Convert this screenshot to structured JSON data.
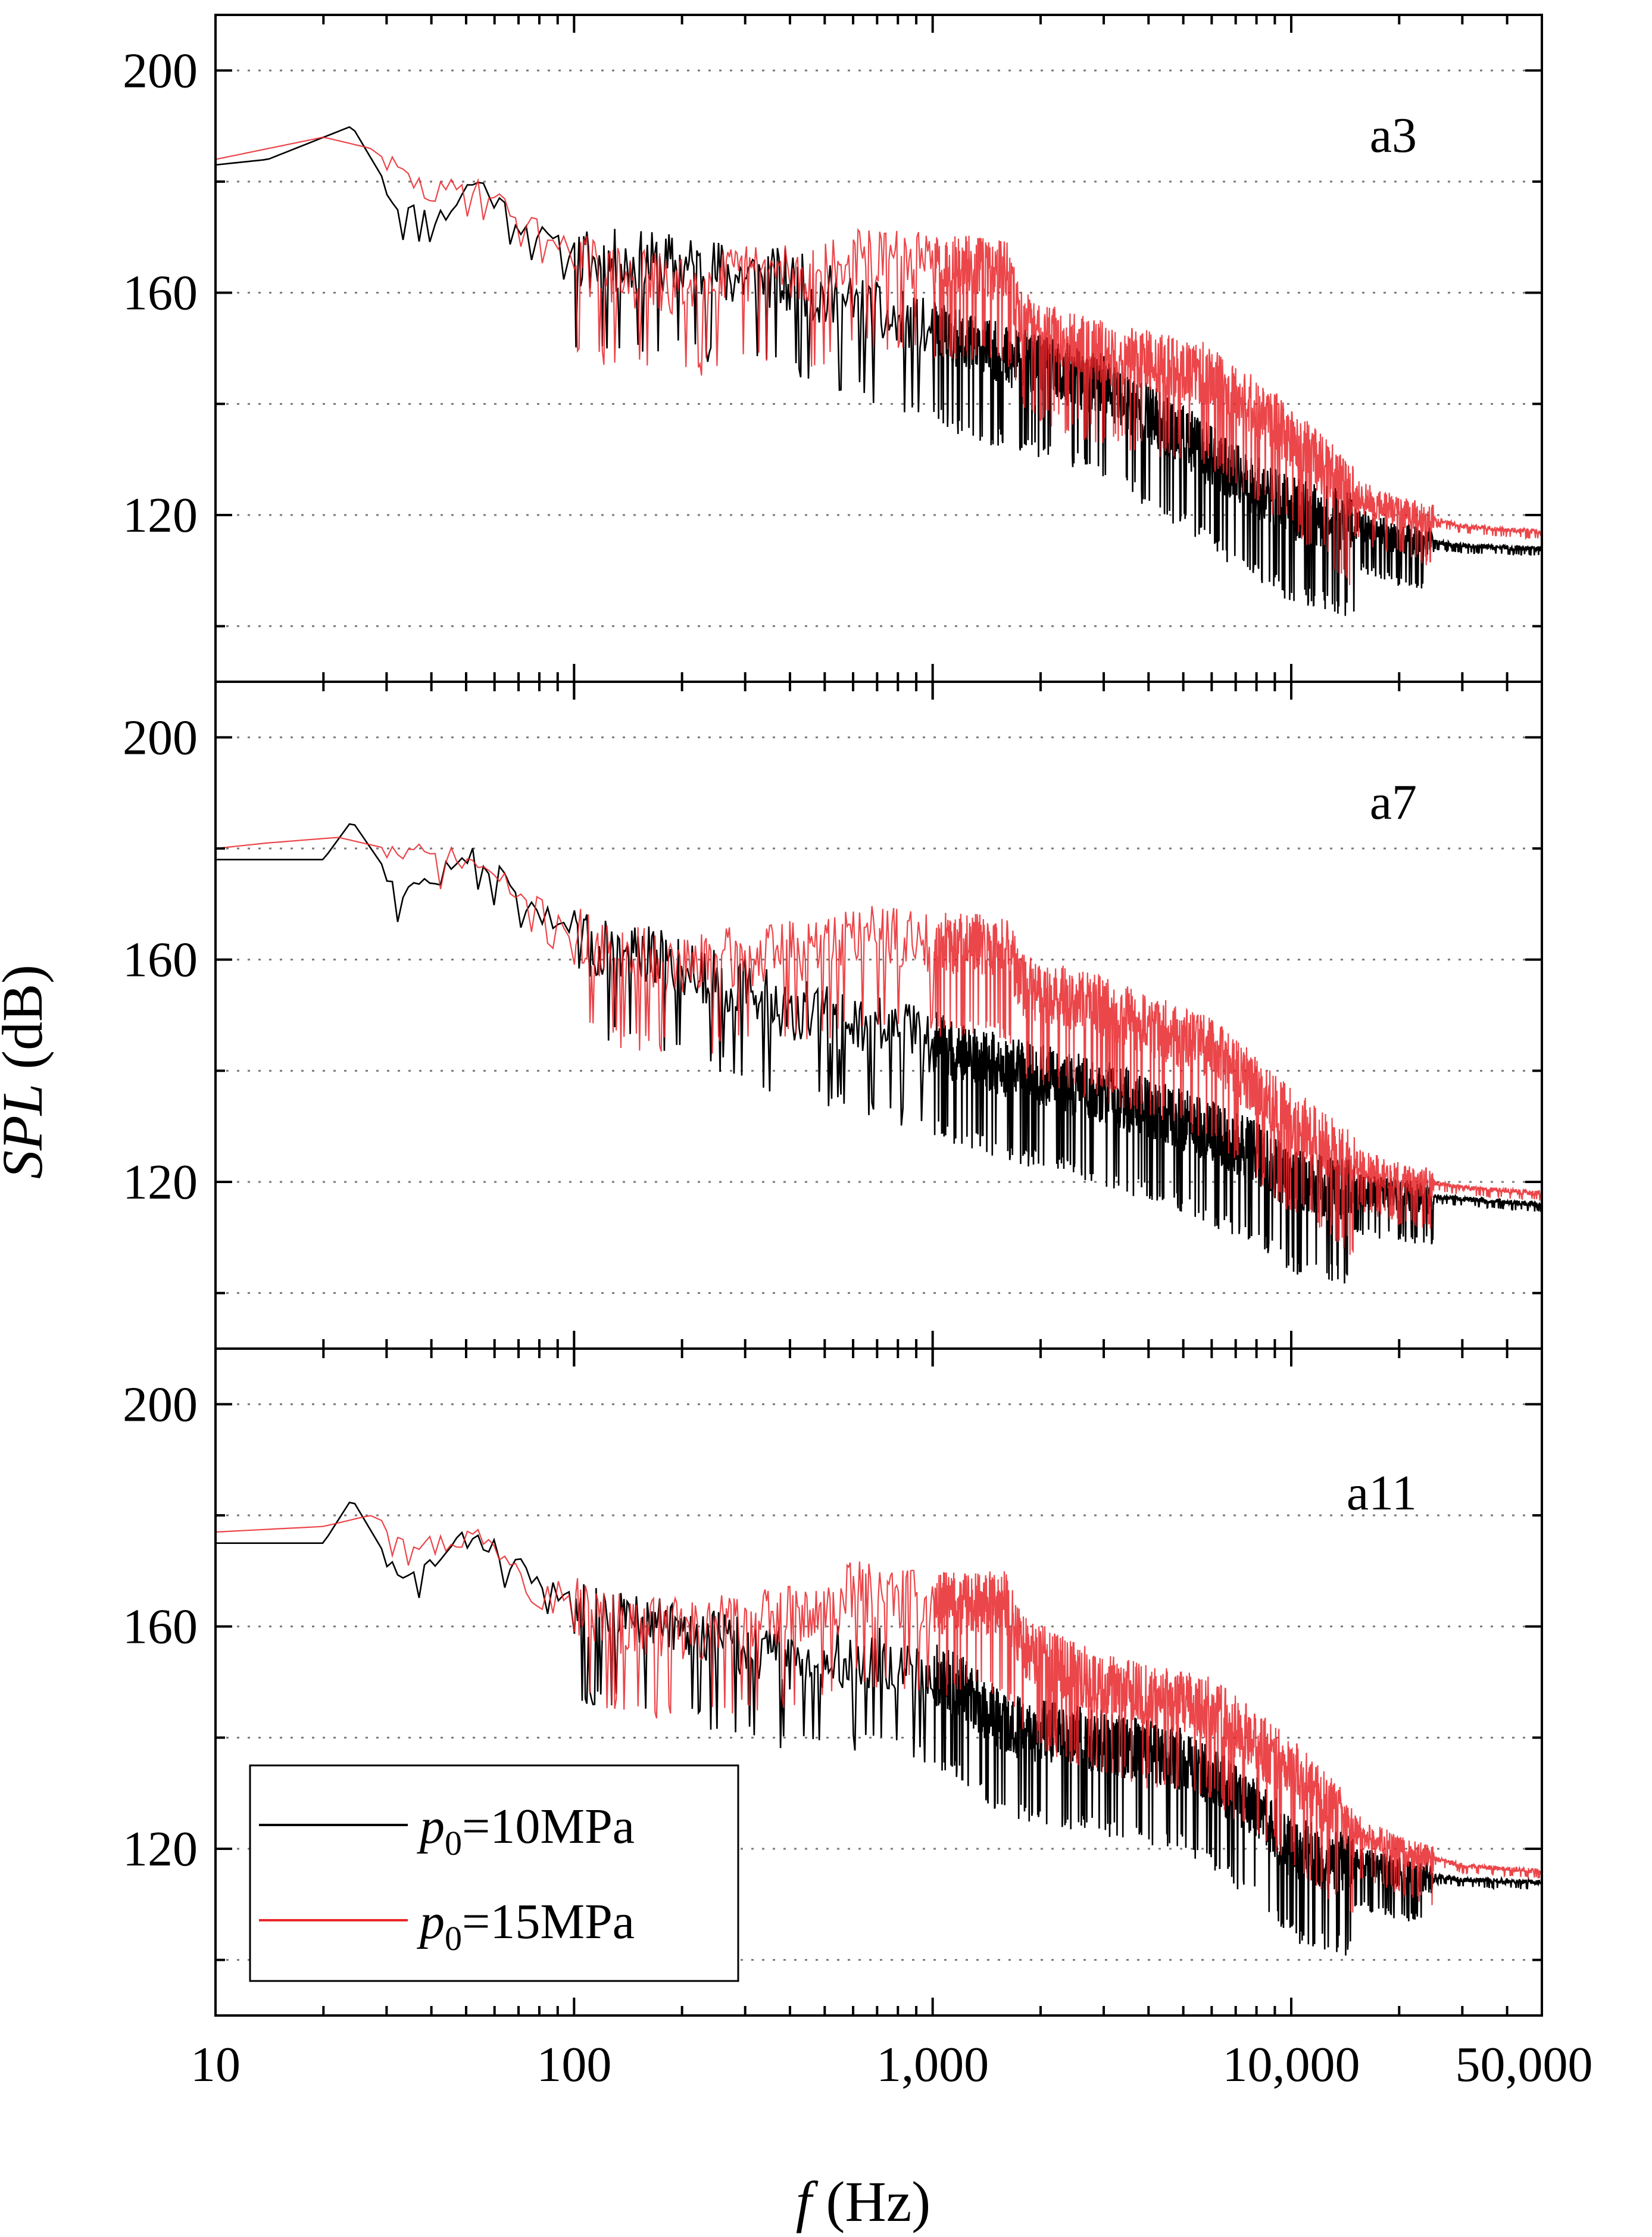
{
  "chart_data": {
    "type": "line",
    "x_scale": "log",
    "xlim": [
      10,
      50000
    ],
    "ylim": [
      90,
      210
    ],
    "ylabel": "SPL (dB)",
    "ylabel_italic_part": "SPL",
    "ylabel_unit": "(dB)",
    "xlabel": "f (Hz)",
    "xlabel_italic_part": "f",
    "xlabel_unit": "(Hz)",
    "x_ticks": [
      {
        "value": 10,
        "label": "10"
      },
      {
        "value": 100,
        "label": "100"
      },
      {
        "value": 1000,
        "label": "1,000"
      },
      {
        "value": 10000,
        "label": "10,000"
      },
      {
        "value": 50000,
        "label": "50,000"
      }
    ],
    "y_ticks": [
      {
        "value": 120,
        "label": "120"
      },
      {
        "value": 160,
        "label": "160"
      },
      {
        "value": 200,
        "label": "200"
      }
    ],
    "y_minor_grid": [
      100,
      140,
      180
    ],
    "legend": {
      "placement": "bottom-left of bottom panel",
      "entries": [
        {
          "name": "p0=10MPa",
          "prefix": "p",
          "sub": "0",
          "suffix": "=10MPa",
          "color": "#000000"
        },
        {
          "name": "p0=15MPa",
          "prefix": "p",
          "sub": "0",
          "suffix": "=15MPa",
          "color": "#e8262a"
        }
      ]
    },
    "panels": [
      {
        "label": "a3",
        "series": [
          {
            "name": "p0=10MPa",
            "color": "#000000",
            "noise": 13,
            "seed": 11,
            "points": [
              [
                10,
                183
              ],
              [
                14,
                184
              ],
              [
                24,
                190
              ],
              [
                33,
                175
              ],
              [
                43,
                174
              ],
              [
                53,
                181
              ],
              [
                70,
                173
              ],
              [
                100,
                167
              ],
              [
                200,
                166
              ],
              [
                400,
                163
              ],
              [
                700,
                157
              ],
              [
                1500,
                150
              ],
              [
                3000,
                144
              ],
              [
                5000,
                135
              ],
              [
                7000,
                128
              ],
              [
                10000,
                122
              ],
              [
                15000,
                119
              ],
              [
                20000,
                116
              ],
              [
                30000,
                114.5
              ],
              [
                50000,
                114
              ]
            ]
          },
          {
            "name": "p0=15MPa",
            "color": "#e8262a",
            "noise": 13,
            "seed": 29,
            "points": [
              [
                10,
                184
              ],
              [
                20,
                188
              ],
              [
                27,
                186
              ],
              [
                40,
                178
              ],
              [
                53,
                180
              ],
              [
                70,
                174
              ],
              [
                120,
                164
              ],
              [
                200,
                162
              ],
              [
                350,
                165
              ],
              [
                500,
                164
              ],
              [
                600,
                167
              ],
              [
                1000,
                166
              ],
              [
                1600,
                165
              ],
              [
                1800,
                155
              ],
              [
                3000,
                150
              ],
              [
                6000,
                146
              ],
              [
                10000,
                135
              ],
              [
                15000,
                124
              ],
              [
                20000,
                121
              ],
              [
                30000,
                118
              ],
              [
                50000,
                117
              ]
            ]
          }
        ]
      },
      {
        "label": "a7",
        "series": [
          {
            "name": "p0=10MPa",
            "color": "#000000",
            "noise": 13,
            "seed": 47,
            "points": [
              [
                10,
                178
              ],
              [
                20,
                178
              ],
              [
                24,
                185
              ],
              [
                33,
                172
              ],
              [
                53,
                179
              ],
              [
                70,
                172
              ],
              [
                100,
                164
              ],
              [
                200,
                160
              ],
              [
                400,
                152
              ],
              [
                800,
                148
              ],
              [
                1500,
                142
              ],
              [
                3000,
                137
              ],
              [
                5000,
                132
              ],
              [
                8000,
                126
              ],
              [
                10000,
                121
              ],
              [
                15000,
                119
              ],
              [
                20000,
                118
              ],
              [
                30000,
                117
              ],
              [
                50000,
                116
              ]
            ]
          },
          {
            "name": "p0=15MPa",
            "color": "#e8262a",
            "noise": 13,
            "seed": 71,
            "points": [
              [
                10,
                180
              ],
              [
                14,
                181
              ],
              [
                22,
                182
              ],
              [
                30,
                180
              ],
              [
                53,
                178
              ],
              [
                70,
                172
              ],
              [
                120,
                162
              ],
              [
                200,
                160
              ],
              [
                350,
                162
              ],
              [
                500,
                163
              ],
              [
                600,
                166
              ],
              [
                1000,
                164
              ],
              [
                1600,
                163
              ],
              [
                1800,
                156
              ],
              [
                3000,
                152
              ],
              [
                6000,
                145
              ],
              [
                10000,
                132
              ],
              [
                15000,
                124
              ],
              [
                20000,
                121
              ],
              [
                30000,
                119
              ],
              [
                50000,
                118
              ]
            ]
          }
        ]
      },
      {
        "label": "a11",
        "series": [
          {
            "name": "p0=10MPa",
            "color": "#000000",
            "noise": 13,
            "seed": 83,
            "points": [
              [
                10,
                175
              ],
              [
                14,
                175
              ],
              [
                20,
                175
              ],
              [
                24,
                183
              ],
              [
                33,
                168
              ],
              [
                53,
                177
              ],
              [
                70,
                171
              ],
              [
                100,
                164
              ],
              [
                200,
                160
              ],
              [
                400,
                155
              ],
              [
                800,
                155
              ],
              [
                1200,
                150
              ],
              [
                1600,
                143
              ],
              [
                3000,
                140
              ],
              [
                5000,
                137
              ],
              [
                8000,
                128
              ],
              [
                10000,
                121
              ],
              [
                15000,
                118
              ],
              [
                20000,
                116
              ],
              [
                30000,
                114.5
              ],
              [
                50000,
                114
              ]
            ]
          },
          {
            "name": "p0=15MPa",
            "color": "#e8262a",
            "noise": 13,
            "seed": 97,
            "points": [
              [
                10,
                177
              ],
              [
                20,
                178
              ],
              [
                27,
                180
              ],
              [
                40,
                175
              ],
              [
                53,
                177
              ],
              [
                70,
                172
              ],
              [
                120,
                162
              ],
              [
                200,
                160
              ],
              [
                350,
                162
              ],
              [
                500,
                163
              ],
              [
                600,
                167
              ],
              [
                1000,
                165
              ],
              [
                1600,
                165
              ],
              [
                1800,
                157
              ],
              [
                3000,
                150
              ],
              [
                6000,
                146
              ],
              [
                10000,
                135
              ],
              [
                15000,
                124
              ],
              [
                20000,
                120
              ],
              [
                30000,
                117
              ],
              [
                50000,
                116
              ]
            ]
          }
        ]
      }
    ]
  }
}
